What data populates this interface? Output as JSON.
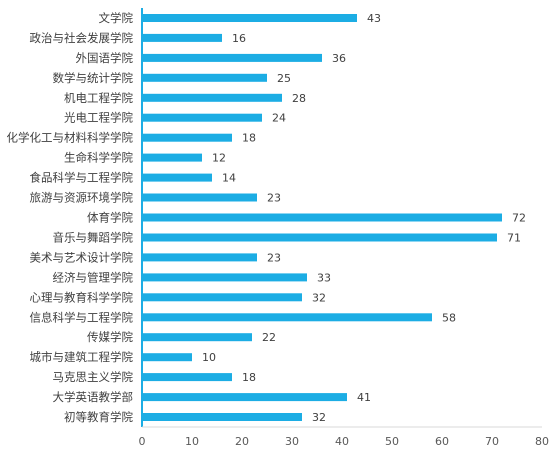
{
  "chart_data": {
    "type": "bar",
    "orientation": "horizontal",
    "title": "",
    "xlabel": "",
    "ylabel": "",
    "categories": [
      "文学院",
      "政治与社会发展学院",
      "外国语学院",
      "数学与统计学院",
      "机电工程学院",
      "光电工程学院",
      "化学化工与材料科学学院",
      "生命科学学院",
      "食品科学与工程学院",
      "旅游与资源环境学院",
      "体育学院",
      "音乐与舞蹈学院",
      "美术与艺术设计学院",
      "经济与管理学院",
      "心理与教育科学学院",
      "信息科学与工程学院",
      "传媒学院",
      "城市与建筑工程学院",
      "马克思主义学院",
      "大学英语教学部",
      "初等教育学院"
    ],
    "values": [
      43,
      16,
      36,
      25,
      28,
      24,
      18,
      12,
      14,
      23,
      72,
      71,
      23,
      33,
      32,
      58,
      22,
      10,
      18,
      41,
      32
    ],
    "xlim": [
      0,
      80
    ],
    "xticks": [
      "0",
      "10",
      "20",
      "30",
      "40",
      "50",
      "60",
      "70",
      "80"
    ],
    "bar_color": "#1CADE4",
    "axis_color": "#1CADE4",
    "grid": false,
    "legend": "none",
    "data_labels": true
  }
}
